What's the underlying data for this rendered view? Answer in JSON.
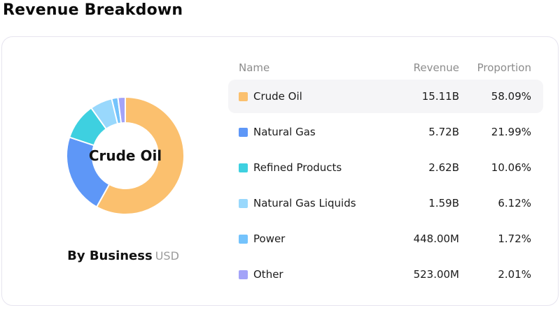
{
  "page_title": "Revenue Breakdown",
  "chart": {
    "center_label": "Crude Oil",
    "caption": "By Business",
    "caption_unit": "USD"
  },
  "table": {
    "columns": {
      "name": "Name",
      "revenue": "Revenue",
      "proportion": "Proportion"
    },
    "rows": [
      {
        "name": "Crude Oil",
        "revenue": "15.11B",
        "proportion": "58.09%",
        "color": "#FBC06E",
        "highlighted": true
      },
      {
        "name": "Natural Gas",
        "revenue": "5.72B",
        "proportion": "21.99%",
        "color": "#5E97F7",
        "highlighted": false
      },
      {
        "name": "Refined Products",
        "revenue": "2.62B",
        "proportion": "10.06%",
        "color": "#3ED0E0",
        "highlighted": false
      },
      {
        "name": "Natural Gas Liquids",
        "revenue": "1.59B",
        "proportion": "6.12%",
        "color": "#99D8FC",
        "highlighted": false
      },
      {
        "name": "Power",
        "revenue": "448.00M",
        "proportion": "1.72%",
        "color": "#74C3FC",
        "highlighted": false
      },
      {
        "name": "Other",
        "revenue": "523.00M",
        "proportion": "2.01%",
        "color": "#A3A3F8",
        "highlighted": false
      }
    ]
  },
  "chart_data": {
    "type": "pie",
    "subtype": "donut",
    "title": "By Business",
    "unit": "USD",
    "center_label": "Crude Oil",
    "categories": [
      "Crude Oil",
      "Natural Gas",
      "Refined Products",
      "Natural Gas Liquids",
      "Power",
      "Other"
    ],
    "values": [
      58.09,
      21.99,
      10.06,
      6.12,
      1.72,
      2.01
    ],
    "revenues": [
      "15.11B",
      "5.72B",
      "2.62B",
      "1.59B",
      "448.00M",
      "523.00M"
    ],
    "colors": [
      "#FBC06E",
      "#5E97F7",
      "#3ED0E0",
      "#99D8FC",
      "#74C3FC",
      "#A3A3F8"
    ],
    "start_angle_deg": 0,
    "direction": "clockwise",
    "inner_radius_ratio": 0.56,
    "legend_position": "right-table"
  }
}
